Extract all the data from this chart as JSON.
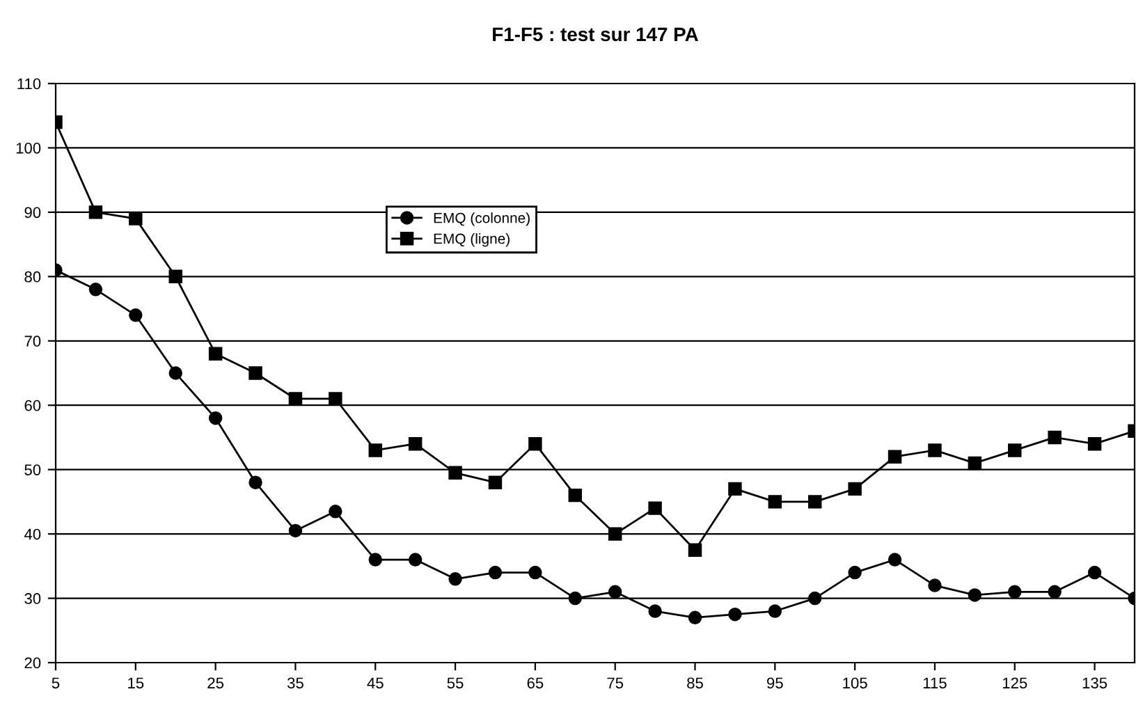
{
  "chart_data": {
    "type": "line",
    "title": "F1-F5 : test sur 147 PA",
    "x": [
      5,
      10,
      15,
      20,
      25,
      30,
      35,
      40,
      45,
      50,
      55,
      60,
      65,
      70,
      75,
      80,
      85,
      90,
      95,
      100,
      105,
      110,
      115,
      120,
      125,
      130,
      135,
      140
    ],
    "series": [
      {
        "name": "EMQ (colonne)",
        "color": "#000000",
        "marker": "circle",
        "values": [
          81,
          78,
          74,
          65,
          58,
          48,
          40.5,
          43.5,
          36,
          36,
          33,
          34,
          34,
          30,
          31,
          28,
          27,
          27.5,
          28,
          30,
          34,
          36,
          32,
          30.5,
          31,
          31,
          34,
          30
        ]
      },
      {
        "name": "EMQ (ligne)",
        "color": "#000000",
        "marker": "square",
        "values": [
          104,
          90,
          89,
          80,
          68,
          65,
          61,
          61,
          53,
          54,
          49.5,
          48,
          54,
          46,
          40,
          44,
          37.5,
          47,
          45,
          45,
          47,
          52,
          53,
          51,
          53,
          55,
          54,
          56
        ]
      }
    ],
    "xlim": [
      5,
      140
    ],
    "xticks": [
      5,
      15,
      25,
      35,
      45,
      55,
      65,
      75,
      85,
      95,
      105,
      115,
      125,
      135
    ],
    "ylim": [
      20,
      110
    ],
    "yticks": [
      20,
      30,
      40,
      50,
      60,
      70,
      80,
      90,
      100,
      110
    ],
    "grid": "y",
    "legend": "top left",
    "line_style": "solid"
  }
}
